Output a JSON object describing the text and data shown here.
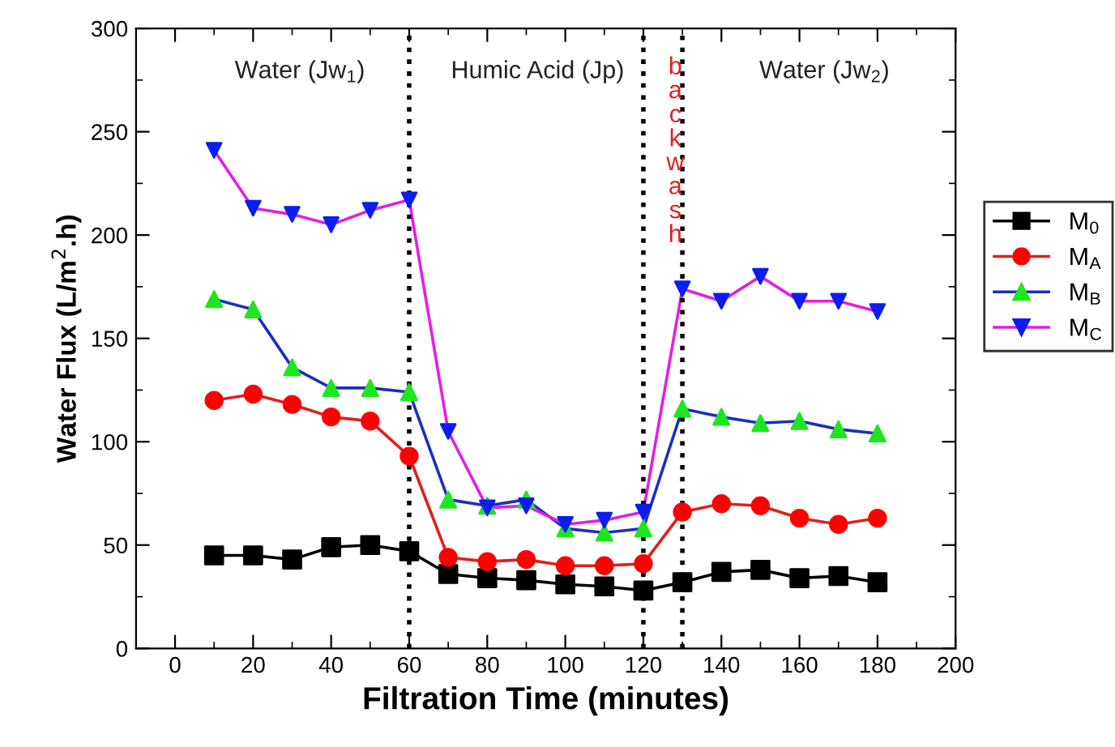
{
  "chart_data": {
    "type": "line",
    "xlabel": "Filtration Time (minutes)",
    "ylabel": "Water Flux (L/m$^{2}$.h)",
    "x": [
      10,
      20,
      30,
      40,
      50,
      60,
      70,
      80,
      90,
      100,
      110,
      120,
      130,
      140,
      150,
      160,
      170,
      180
    ],
    "series": [
      {
        "name": "M$_{0}$",
        "color": "#000000",
        "colors": [
          "#000000",
          "#000000",
          "#000000",
          "#000000",
          "#000000",
          "#000000",
          "#000000",
          "#000000",
          "#000000",
          "#000000",
          "#000000",
          "#000000",
          "#000000",
          "#000000",
          "#000000",
          "#000000",
          "#000000",
          "#000000"
        ],
        "marker": "square",
        "values": [
          45,
          45,
          43,
          49,
          50,
          47,
          36,
          34,
          33,
          31,
          30,
          28,
          32,
          37,
          38,
          34,
          35,
          32
        ]
      },
      {
        "name": "M$_{A}$",
        "color": "#e0201b",
        "colors": [
          "#ff0000",
          "#ff0000",
          "#ff0000",
          "#ff0000",
          "#ff0000",
          "#ff0000",
          "#ff0000",
          "#ff0000",
          "#ff0000",
          "#ff0000",
          "#ff0000",
          "#ff0000",
          "#ff0000",
          "#ff0000",
          "#ff0000",
          "#ff0000",
          "#ff0000",
          "#ff0000"
        ],
        "marker": "circle",
        "values": [
          120,
          123,
          118,
          112,
          110,
          93,
          44,
          42,
          43,
          40,
          40,
          41,
          66,
          70,
          69,
          63,
          60,
          63
        ]
      },
      {
        "name": "M$_{B}$",
        "color": "#1a2fc0",
        "colors": [
          "#1ee61e",
          "#1ee61e",
          "#1ee61e",
          "#1ee61e",
          "#1ee61e",
          "#1ee61e",
          "#1ee61e",
          "#1ee61e",
          "#1ee61e",
          "#1ee61e",
          "#1ee61e",
          "#1ee61e",
          "#1ee61e",
          "#1ee61e",
          "#1ee61e",
          "#1ee61e",
          "#1ee61e",
          "#1ee61e"
        ],
        "marker": "triangle",
        "values": [
          169,
          164,
          136,
          126,
          126,
          124,
          72,
          69,
          72,
          58,
          56,
          58,
          116,
          112,
          109,
          110,
          106,
          104
        ]
      },
      {
        "name": "M$_{C}$",
        "color": "#e020e0",
        "colors": [
          "#0a1ef0",
          "#0a1ef0",
          "#0a1ef0",
          "#0a1ef0",
          "#0a1ef0",
          "#0a1ef0",
          "#0a1ef0",
          "#0a1ef0",
          "#0a1ef0",
          "#0a1ef0",
          "#0a1ef0",
          "#0a1ef0",
          "#0a1ef0",
          "#0a1ef0",
          "#0a1ef0",
          "#0a1ef0",
          "#0a1ef0",
          "#0a1ef0"
        ],
        "marker": "triangle_down",
        "values": [
          241,
          213,
          210,
          205,
          212,
          217,
          105,
          68,
          69,
          60,
          62,
          66,
          174,
          168,
          180,
          168,
          168,
          163
        ]
      }
    ],
    "xlim": [
      -10,
      200
    ],
    "xticks": [
      0,
      20,
      40,
      60,
      80,
      100,
      120,
      140,
      160,
      180,
      200
    ],
    "ylim": [
      0,
      300
    ],
    "yticks": [
      0,
      50,
      100,
      150,
      200,
      250,
      300
    ],
    "ref_lines": [
      {
        "axis": "x",
        "value": 60,
        "color": "#000000",
        "line_style": "dotted"
      },
      {
        "axis": "x",
        "value": 120,
        "color": "#000000",
        "line_style": "dotted"
      },
      {
        "axis": "x",
        "value": 130,
        "color": "#000000",
        "line_style": "dotted"
      }
    ],
    "annotations": [
      "Water (Jw$_{1}$)",
      "Humic Acid (Jp)",
      "backwash",
      "Water (Jw$_{2}$)"
    ],
    "grid": false,
    "legend": "right",
    "line_style": "solid"
  }
}
